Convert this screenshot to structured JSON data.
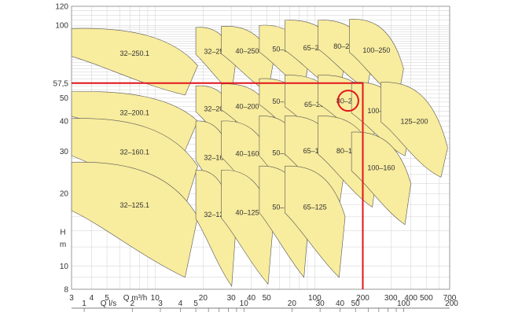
{
  "chart_data": {
    "type": "area",
    "title": "",
    "x_axis": {
      "label": "Q m³/h",
      "scale": "log",
      "range": [
        3,
        700
      ],
      "ticks": [
        "3",
        "4",
        "5",
        "10",
        "20",
        "30",
        "40",
        "50",
        "100",
        "200",
        "300",
        "400",
        "500",
        "700"
      ]
    },
    "x2_axis": {
      "label": "Q l/s",
      "scale": "log",
      "ticks": [
        "1",
        "2",
        "3",
        "4",
        "5",
        "10",
        "20",
        "30",
        "40",
        "50",
        "100",
        "200"
      ]
    },
    "y_axis": {
      "label_top": "H",
      "label_bottom": "m",
      "scale": "log",
      "range": [
        8,
        120
      ],
      "ticks": [
        "8",
        "10",
        "20",
        "30",
        "40",
        "50",
        "57,5",
        "100",
        "120"
      ]
    },
    "grid": true,
    "fill_color": "#f8ec9e",
    "edge_color": "#555555",
    "highlight_color": "#e3151b",
    "selection": {
      "model": "80–200",
      "flow_m3h": 200,
      "head_m": 57.5,
      "head_label": "57,5"
    },
    "pumps": [
      {
        "name": "32–250.1",
        "q": [
          3,
          18.5
        ],
        "h": [
          97,
          68
        ]
      },
      {
        "name": "32–250",
        "q": [
          18,
          32
        ],
        "h": [
          98,
          70
        ]
      },
      {
        "name": "40–250",
        "q": [
          26,
          55
        ],
        "h": [
          99,
          70
        ]
      },
      {
        "name": "50–250",
        "q": [
          45,
          92
        ],
        "h": [
          100,
          72
        ]
      },
      {
        "name": "65–250",
        "q": [
          65,
          155
        ],
        "h": [
          105,
          70
        ]
      },
      {
        "name": "80–250",
        "q": [
          105,
          230
        ],
        "h": [
          105,
          72
        ]
      },
      {
        "name": "100–250",
        "q": [
          165,
          360
        ],
        "h": [
          106,
          66
        ]
      },
      {
        "name": "32–200.1",
        "q": [
          3,
          18.5
        ],
        "h": [
          53,
          40
        ]
      },
      {
        "name": "32–200",
        "q": [
          18,
          32
        ],
        "h": [
          56,
          41
        ]
      },
      {
        "name": "40–200",
        "q": [
          26,
          55
        ],
        "h": [
          57,
          42
        ]
      },
      {
        "name": "50–200",
        "q": [
          45,
          92
        ],
        "h": [
          60,
          44
        ]
      },
      {
        "name": "65–200",
        "q": [
          65,
          160
        ],
        "h": [
          62,
          40
        ]
      },
      {
        "name": "80–200",
        "q": [
          105,
          250
        ],
        "h": [
          62,
          43
        ]
      },
      {
        "name": "100–200",
        "q": [
          170,
          400
        ],
        "h": [
          58,
          38
        ]
      },
      {
        "name": "125–200",
        "q": [
          260,
          680
        ],
        "h": [
          58,
          31
        ]
      },
      {
        "name": "32–160.1",
        "q": [
          3,
          18.5
        ],
        "h": [
          41,
          26
        ]
      },
      {
        "name": "32–160",
        "q": [
          18,
          32
        ],
        "h": [
          40,
          24
        ]
      },
      {
        "name": "40–160",
        "q": [
          26,
          55
        ],
        "h": [
          40,
          26
        ]
      },
      {
        "name": "50–160",
        "q": [
          45,
          92
        ],
        "h": [
          42,
          25
        ]
      },
      {
        "name": "65–160",
        "q": [
          65,
          155
        ],
        "h": [
          42,
          26
        ]
      },
      {
        "name": "80–160",
        "q": [
          105,
          250
        ],
        "h": [
          42,
          26
        ]
      },
      {
        "name": "100–160",
        "q": [
          170,
          400
        ],
        "h": [
          36,
          22
        ]
      },
      {
        "name": "32–125.1",
        "q": [
          3,
          18.5
        ],
        "h": [
          27,
          16
        ]
      },
      {
        "name": "32–125",
        "q": [
          18,
          32
        ],
        "h": [
          25,
          14
        ]
      },
      {
        "name": "40–125",
        "q": [
          26,
          55
        ],
        "h": [
          25,
          15
        ]
      },
      {
        "name": "50–125",
        "q": [
          45,
          92
        ],
        "h": [
          26,
          16
        ]
      },
      {
        "name": "65–125",
        "q": [
          65,
          155
        ],
        "h": [
          26,
          16
        ]
      }
    ]
  }
}
